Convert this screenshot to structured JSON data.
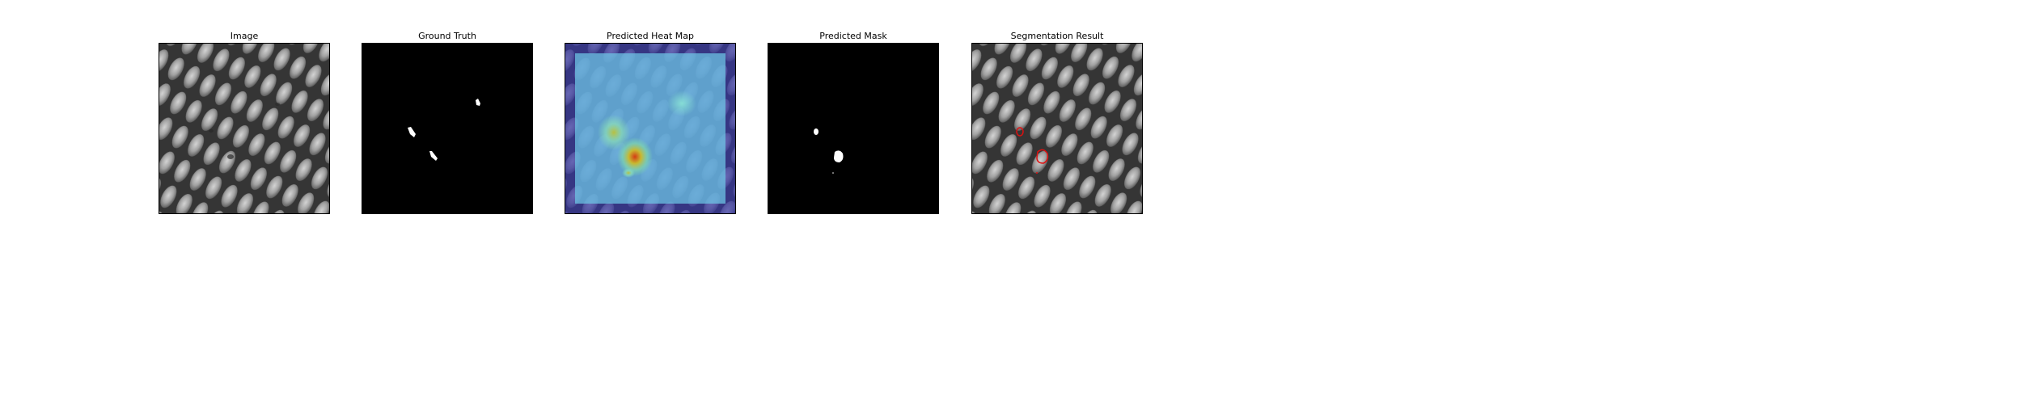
{
  "figure": {
    "panels": [
      {
        "title": "Image"
      },
      {
        "title": "Ground Truth"
      },
      {
        "title": "Predicted Heat Map"
      },
      {
        "title": "Predicted Mask"
      },
      {
        "title": "Segmentation Result"
      }
    ]
  },
  "colors": {
    "background": "#ffffff",
    "mask_background": "#000000",
    "mask_foreground": "#ffffff",
    "contour": "#e01010",
    "heatmap_low": "#3b3ba8",
    "heatmap_mid": "#5fb4d6",
    "heatmap_high": "#d84a18"
  }
}
